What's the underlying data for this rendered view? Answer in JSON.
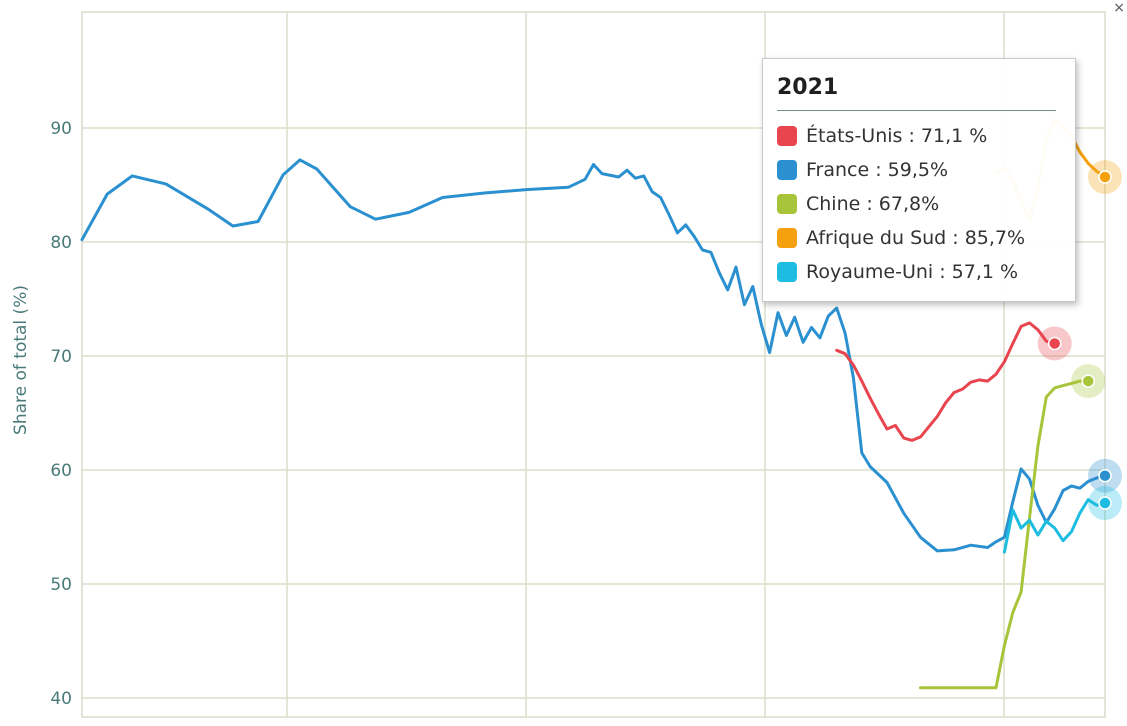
{
  "chart_data": {
    "type": "line",
    "ylabel": "Share of total (%)",
    "ylim": [
      40,
      100
    ],
    "yticks": [
      "40",
      "50",
      "60",
      "70",
      "80",
      "90"
    ],
    "grid": true,
    "series": [
      {
        "name": "France",
        "color": "#2b90d0",
        "points": [
          [
            0,
            80.2
          ],
          [
            3,
            84.2
          ],
          [
            6,
            85.8
          ],
          [
            10,
            85.1
          ],
          [
            15,
            82.9
          ],
          [
            18,
            81.4
          ],
          [
            21,
            81.8
          ],
          [
            24,
            85.9
          ],
          [
            26,
            87.2
          ],
          [
            28,
            86.4
          ],
          [
            32,
            83.1
          ],
          [
            35,
            82.0
          ],
          [
            39,
            82.6
          ],
          [
            43,
            83.9
          ],
          [
            48,
            84.3
          ],
          [
            53,
            84.6
          ],
          [
            58,
            84.8
          ],
          [
            60,
            85.5
          ],
          [
            61,
            86.8
          ],
          [
            62,
            86.0
          ],
          [
            64,
            85.7
          ],
          [
            65,
            86.3
          ],
          [
            66,
            85.6
          ],
          [
            67,
            85.8
          ],
          [
            68,
            84.4
          ],
          [
            69,
            83.9
          ],
          [
            70,
            82.4
          ],
          [
            71,
            80.8
          ],
          [
            72,
            81.5
          ],
          [
            73,
            80.5
          ],
          [
            74,
            79.3
          ],
          [
            75,
            79.1
          ],
          [
            76,
            77.3
          ],
          [
            77,
            75.8
          ],
          [
            78,
            77.8
          ],
          [
            79,
            74.5
          ],
          [
            80,
            76.1
          ],
          [
            81,
            72.8
          ],
          [
            82,
            70.3
          ],
          [
            83,
            73.8
          ],
          [
            84,
            71.8
          ],
          [
            85,
            73.4
          ],
          [
            86,
            71.2
          ],
          [
            87,
            72.5
          ],
          [
            88,
            71.6
          ],
          [
            89,
            73.5
          ],
          [
            90,
            74.2
          ],
          [
            91,
            72.0
          ],
          [
            92,
            68.1
          ],
          [
            93,
            61.5
          ],
          [
            94,
            60.3
          ],
          [
            96,
            58.9
          ],
          [
            98,
            56.2
          ],
          [
            100,
            54.1
          ],
          [
            102,
            52.9
          ],
          [
            104,
            53.0
          ],
          [
            106,
            53.4
          ],
          [
            108,
            53.2
          ],
          [
            109,
            53.7
          ],
          [
            110,
            54.1
          ],
          [
            111,
            57.2
          ],
          [
            112,
            60.1
          ],
          [
            113,
            59.2
          ],
          [
            114,
            56.9
          ],
          [
            115,
            55.4
          ],
          [
            116,
            56.6
          ],
          [
            117,
            58.2
          ],
          [
            118,
            58.6
          ],
          [
            119,
            58.4
          ],
          [
            120,
            59.0
          ],
          [
            121,
            59.3
          ],
          [
            122,
            59.5
          ]
        ]
      },
      {
        "name": "États-Unis",
        "color": "#e8454e",
        "points": [
          [
            90,
            70.5
          ],
          [
            91,
            70.2
          ],
          [
            92,
            69.2
          ],
          [
            93,
            67.8
          ],
          [
            94,
            66.3
          ],
          [
            95,
            64.9
          ],
          [
            96,
            63.6
          ],
          [
            97,
            63.9
          ],
          [
            98,
            62.8
          ],
          [
            99,
            62.6
          ],
          [
            100,
            62.9
          ],
          [
            101,
            63.8
          ],
          [
            102,
            64.7
          ],
          [
            103,
            65.9
          ],
          [
            104,
            66.8
          ],
          [
            105,
            67.1
          ],
          [
            106,
            67.7
          ],
          [
            107,
            67.9
          ],
          [
            108,
            67.8
          ],
          [
            109,
            68.4
          ],
          [
            110,
            69.5
          ],
          [
            111,
            71.1
          ],
          [
            112,
            72.6
          ],
          [
            113,
            72.9
          ],
          [
            114,
            72.3
          ],
          [
            115,
            71.3
          ],
          [
            116,
            71.1
          ]
        ]
      },
      {
        "name": "Chine",
        "color": "#a8c43a",
        "points": [
          [
            100,
            40.9
          ],
          [
            101,
            40.9
          ],
          [
            102,
            40.9
          ],
          [
            103,
            40.9
          ],
          [
            104,
            40.9
          ],
          [
            105,
            40.9
          ],
          [
            106,
            40.9
          ],
          [
            107,
            40.9
          ],
          [
            108,
            40.9
          ],
          [
            109,
            40.9
          ],
          [
            110,
            44.6
          ],
          [
            111,
            47.5
          ],
          [
            112,
            49.3
          ],
          [
            113,
            55.8
          ],
          [
            114,
            62.1
          ],
          [
            115,
            66.4
          ],
          [
            116,
            67.2
          ],
          [
            117,
            67.4
          ],
          [
            118,
            67.6
          ],
          [
            119,
            67.8
          ],
          [
            120,
            67.8
          ]
        ]
      },
      {
        "name": "Afrique du Sud",
        "color": "#f5a10f",
        "points": [
          [
            109,
            86.0
          ],
          [
            110,
            86.5
          ],
          [
            111,
            85.4
          ],
          [
            112,
            83.6
          ],
          [
            113,
            81.9
          ],
          [
            114,
            84.8
          ],
          [
            115,
            88.9
          ],
          [
            116,
            90.7
          ],
          [
            117,
            90.1
          ],
          [
            118,
            89.3
          ],
          [
            119,
            87.9
          ],
          [
            120,
            86.9
          ],
          [
            121,
            86.2
          ],
          [
            122,
            85.7
          ]
        ]
      },
      {
        "name": "Royaume-Uni",
        "color": "#1cbde0",
        "points": [
          [
            110,
            52.8
          ],
          [
            111,
            56.5
          ],
          [
            112,
            54.9
          ],
          [
            113,
            55.6
          ],
          [
            114,
            54.3
          ],
          [
            115,
            55.5
          ],
          [
            116,
            54.9
          ],
          [
            117,
            53.8
          ],
          [
            118,
            54.6
          ],
          [
            119,
            56.2
          ],
          [
            120,
            57.4
          ],
          [
            121,
            56.9
          ],
          [
            122,
            57.1
          ]
        ]
      }
    ]
  },
  "tooltip": {
    "title": "2021",
    "entries": [
      {
        "text": "États-Unis : 71,1 %",
        "color": "#e8454e"
      },
      {
        "text": "France : 59,5%",
        "color": "#2b90d0"
      },
      {
        "text": "Chine : 67,8%",
        "color": "#a8c43a"
      },
      {
        "text": "Afrique du Sud : 85,7%",
        "color": "#f5a10f"
      },
      {
        "text": "Royaume-Uni : 57,1 %",
        "color": "#1cbde0"
      }
    ]
  },
  "close_glyph": "×"
}
